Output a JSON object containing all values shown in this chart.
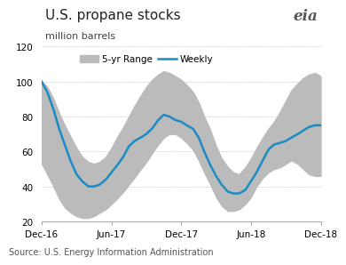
{
  "title": "U.S. propane stocks",
  "subtitle": "million barrels",
  "source": "Source: U.S. Energy Information Administration",
  "ylim": [
    20,
    120
  ],
  "yticks": [
    20,
    40,
    60,
    80,
    100,
    120
  ],
  "xtick_labels": [
    "Dec-16",
    "Jun-17",
    "Dec-17",
    "Jun-18",
    "Dec-18"
  ],
  "band_color": "#bbbbbb",
  "line_color": "#1b8bc4",
  "line_width": 1.8,
  "background_color": "#ffffff",
  "title_fontsize": 11,
  "subtitle_fontsize": 8,
  "source_fontsize": 7,
  "x_points": [
    0,
    0.08,
    0.17,
    0.25,
    0.33,
    0.42,
    0.5,
    0.58,
    0.67,
    0.75,
    0.83,
    0.92,
    1.0,
    1.08,
    1.17,
    1.25,
    1.33,
    1.42,
    1.5,
    1.58,
    1.67,
    1.75,
    1.83,
    1.92,
    2.0,
    2.08,
    2.17,
    2.25,
    2.33,
    2.42,
    2.5,
    2.58,
    2.67,
    2.75,
    2.83,
    2.92,
    3.0,
    3.08,
    3.17,
    3.25,
    3.33,
    3.42,
    3.5,
    3.58,
    3.67,
    3.75,
    3.83,
    3.92,
    4.0
  ],
  "weekly_y": [
    100,
    94,
    84,
    73,
    64,
    54,
    47,
    43,
    40,
    40,
    41,
    44,
    48,
    52,
    57,
    63,
    66,
    68,
    70,
    73,
    78,
    81,
    80,
    78,
    77,
    75,
    73,
    68,
    60,
    52,
    46,
    41,
    37,
    36,
    36,
    38,
    43,
    48,
    55,
    61,
    64,
    65,
    66,
    68,
    70,
    72,
    74,
    75,
    75
  ],
  "band_upper": [
    100,
    97,
    90,
    82,
    75,
    68,
    62,
    57,
    54,
    53,
    54,
    57,
    62,
    68,
    74,
    80,
    86,
    92,
    97,
    101,
    104,
    106,
    105,
    103,
    101,
    98,
    94,
    88,
    80,
    72,
    63,
    56,
    51,
    48,
    47,
    51,
    56,
    62,
    68,
    73,
    77,
    83,
    89,
    95,
    99,
    102,
    104,
    105,
    103
  ],
  "band_lower": [
    53,
    47,
    40,
    33,
    28,
    25,
    23,
    22,
    22,
    23,
    25,
    27,
    30,
    33,
    37,
    41,
    45,
    50,
    54,
    59,
    64,
    68,
    70,
    70,
    68,
    65,
    61,
    55,
    48,
    41,
    34,
    29,
    26,
    26,
    27,
    30,
    34,
    40,
    45,
    48,
    50,
    51,
    53,
    55,
    53,
    50,
    47,
    46,
    46
  ]
}
